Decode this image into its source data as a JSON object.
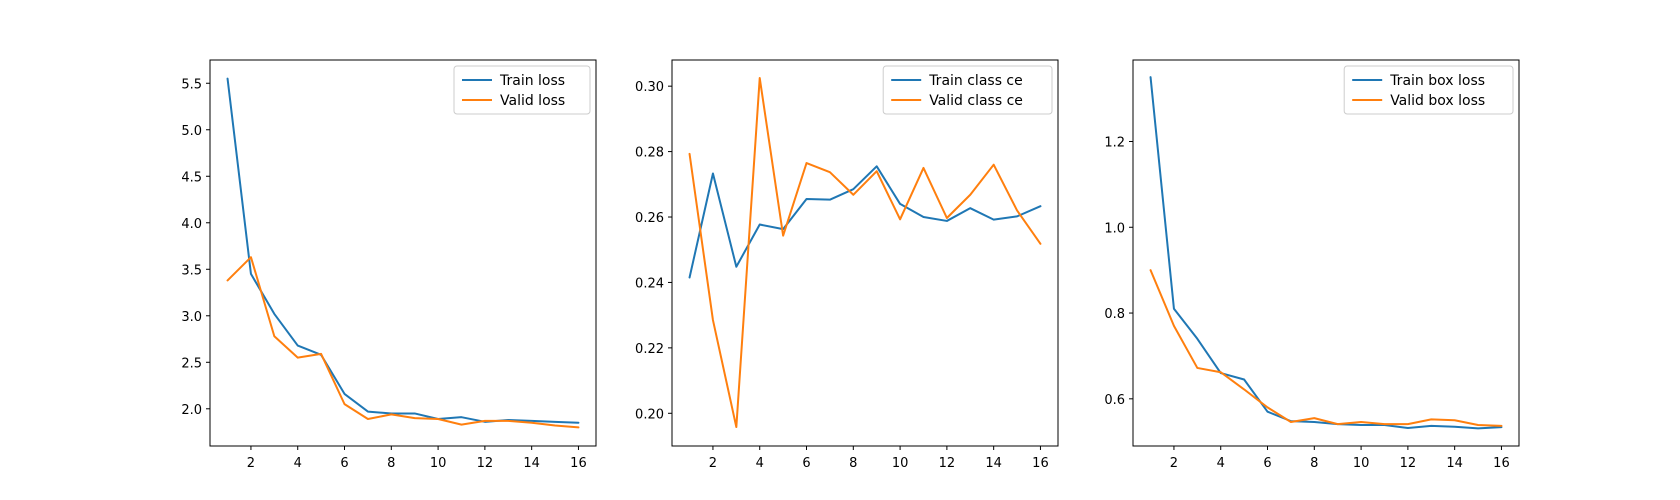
{
  "chart_data": [
    {
      "type": "line",
      "title": "",
      "xlabel": "",
      "ylabel": "",
      "xlim": [
        0.25,
        16.75
      ],
      "ylim": [
        1.6,
        5.75
      ],
      "xticks": [
        2,
        4,
        6,
        8,
        10,
        12,
        14,
        16
      ],
      "yticks": [
        2.0,
        2.5,
        3.0,
        3.5,
        4.0,
        4.5,
        5.0,
        5.5
      ],
      "ytick_labels": [
        "2.0",
        "2.5",
        "3.0",
        "3.5",
        "4.0",
        "4.5",
        "5.0",
        "5.5"
      ],
      "legend_position": "top-right",
      "grid": false,
      "x": [
        1,
        2,
        3,
        4,
        5,
        6,
        7,
        8,
        9,
        10,
        11,
        12,
        13,
        14,
        15,
        16
      ],
      "series": [
        {
          "name": "Train loss",
          "color": "#1f77b4",
          "values": [
            5.55,
            3.45,
            3.02,
            2.68,
            2.58,
            2.16,
            1.97,
            1.95,
            1.95,
            1.89,
            1.91,
            1.86,
            1.88,
            1.87,
            1.86,
            1.85
          ]
        },
        {
          "name": "Valid loss",
          "color": "#ff7f0e",
          "values": [
            3.38,
            3.63,
            2.78,
            2.55,
            2.59,
            2.05,
            1.89,
            1.94,
            1.9,
            1.89,
            1.83,
            1.87,
            1.87,
            1.85,
            1.82,
            1.8
          ]
        }
      ]
    },
    {
      "type": "line",
      "title": "",
      "xlabel": "",
      "ylabel": "",
      "xlim": [
        0.25,
        16.75
      ],
      "ylim": [
        0.19,
        0.308
      ],
      "xticks": [
        2,
        4,
        6,
        8,
        10,
        12,
        14,
        16
      ],
      "yticks": [
        0.2,
        0.22,
        0.24,
        0.26,
        0.28,
        0.3
      ],
      "ytick_labels": [
        "0.20",
        "0.22",
        "0.24",
        "0.26",
        "0.28",
        "0.30"
      ],
      "legend_position": "top-right",
      "grid": false,
      "x": [
        1,
        2,
        3,
        4,
        5,
        6,
        7,
        8,
        9,
        10,
        11,
        12,
        13,
        14,
        15,
        16
      ],
      "series": [
        {
          "name": "Train class ce",
          "color": "#1f77b4",
          "values": [
            0.2415,
            0.2733,
            0.2448,
            0.2577,
            0.2563,
            0.2655,
            0.2653,
            0.2685,
            0.2755,
            0.264,
            0.26,
            0.2588,
            0.2627,
            0.2592,
            0.2602,
            0.2633
          ]
        },
        {
          "name": "Valid class ce",
          "color": "#ff7f0e",
          "values": [
            0.2793,
            0.2285,
            0.1958,
            0.3025,
            0.2543,
            0.2765,
            0.2737,
            0.2668,
            0.274,
            0.2593,
            0.275,
            0.2597,
            0.2668,
            0.276,
            0.262,
            0.2518
          ]
        }
      ]
    },
    {
      "type": "line",
      "title": "",
      "xlabel": "",
      "ylabel": "",
      "xlim": [
        0.25,
        16.75
      ],
      "ylim": [
        0.49,
        1.39
      ],
      "xticks": [
        2,
        4,
        6,
        8,
        10,
        12,
        14,
        16
      ],
      "yticks": [
        0.6,
        0.8,
        1.0,
        1.2
      ],
      "ytick_labels": [
        "0.6",
        "0.8",
        "1.0",
        "1.2"
      ],
      "legend_position": "top-right",
      "grid": false,
      "x": [
        1,
        2,
        3,
        4,
        5,
        6,
        7,
        8,
        9,
        10,
        11,
        12,
        13,
        14,
        15,
        16
      ],
      "series": [
        {
          "name": "Train box loss",
          "color": "#1f77b4",
          "values": [
            1.35,
            0.81,
            0.74,
            0.66,
            0.645,
            0.57,
            0.548,
            0.546,
            0.541,
            0.539,
            0.539,
            0.532,
            0.537,
            0.535,
            0.531,
            0.534
          ]
        },
        {
          "name": "Valid box loss",
          "color": "#ff7f0e",
          "values": [
            0.9,
            0.77,
            0.672,
            0.662,
            0.622,
            0.58,
            0.546,
            0.555,
            0.541,
            0.546,
            0.541,
            0.541,
            0.552,
            0.55,
            0.539,
            0.537
          ]
        }
      ]
    }
  ]
}
